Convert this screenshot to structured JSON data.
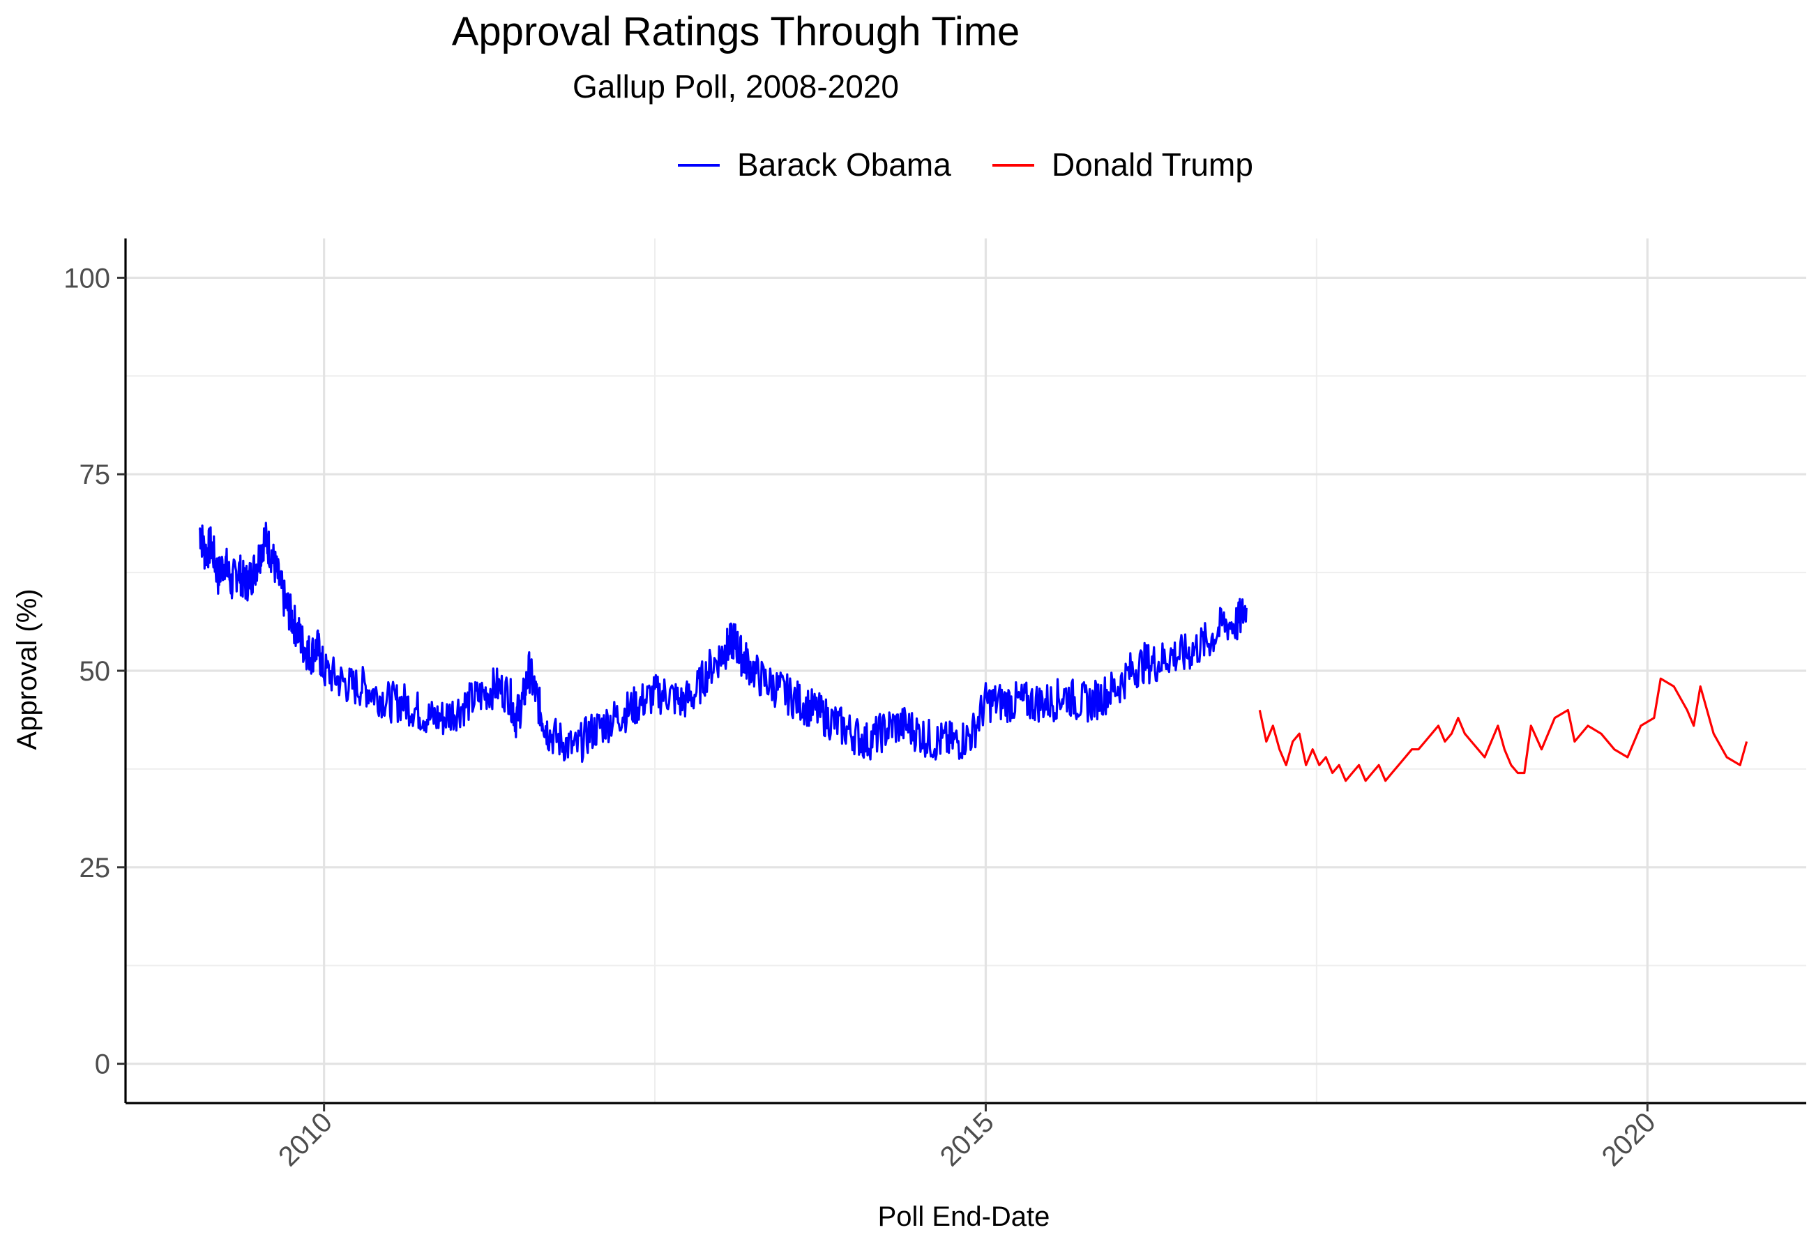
{
  "chart_data": {
    "type": "line",
    "title": "Approval Ratings Through Time",
    "subtitle": "Gallup Poll, 2008-2020",
    "xlabel": "Poll End-Date",
    "ylabel": "Approval (%)",
    "xlim": [
      2008.5,
      2021.2
    ],
    "ylim": [
      -5,
      105
    ],
    "yticks": [
      0,
      25,
      50,
      75,
      100
    ],
    "xticks": [
      2010,
      2015,
      2020
    ],
    "legend_position": "top",
    "grid": true,
    "series": [
      {
        "name": "Barack Obama",
        "color": "#0000ff",
        "points": [
          [
            2009.06,
            68
          ],
          [
            2009.1,
            65
          ],
          [
            2009.15,
            66
          ],
          [
            2009.2,
            62
          ],
          [
            2009.25,
            64
          ],
          [
            2009.3,
            61
          ],
          [
            2009.35,
            63
          ],
          [
            2009.4,
            61
          ],
          [
            2009.45,
            62
          ],
          [
            2009.5,
            64
          ],
          [
            2009.55,
            67
          ],
          [
            2009.6,
            65
          ],
          [
            2009.65,
            62
          ],
          [
            2009.7,
            59
          ],
          [
            2009.75,
            57
          ],
          [
            2009.8,
            55
          ],
          [
            2009.85,
            53
          ],
          [
            2009.9,
            52
          ],
          [
            2009.95,
            53
          ],
          [
            2010.0,
            50
          ],
          [
            2010.1,
            49
          ],
          [
            2010.2,
            48
          ],
          [
            2010.3,
            48
          ],
          [
            2010.4,
            47
          ],
          [
            2010.5,
            46
          ],
          [
            2010.6,
            46
          ],
          [
            2010.7,
            45
          ],
          [
            2010.8,
            44
          ],
          [
            2010.9,
            44
          ],
          [
            2011.0,
            45
          ],
          [
            2011.1,
            46
          ],
          [
            2011.2,
            47
          ],
          [
            2011.3,
            48
          ],
          [
            2011.4,
            47
          ],
          [
            2011.45,
            44
          ],
          [
            2011.5,
            46
          ],
          [
            2011.55,
            50
          ],
          [
            2011.6,
            47
          ],
          [
            2011.65,
            44
          ],
          [
            2011.7,
            42
          ],
          [
            2011.8,
            41
          ],
          [
            2011.9,
            40
          ],
          [
            2012.0,
            42
          ],
          [
            2012.1,
            43
          ],
          [
            2012.2,
            44
          ],
          [
            2012.3,
            45
          ],
          [
            2012.4,
            46
          ],
          [
            2012.5,
            47
          ],
          [
            2012.6,
            47
          ],
          [
            2012.7,
            46
          ],
          [
            2012.8,
            47
          ],
          [
            2012.9,
            50
          ],
          [
            2013.0,
            52
          ],
          [
            2013.05,
            53
          ],
          [
            2013.1,
            54
          ],
          [
            2013.15,
            52
          ],
          [
            2013.2,
            51
          ],
          [
            2013.3,
            49
          ],
          [
            2013.4,
            48
          ],
          [
            2013.5,
            47
          ],
          [
            2013.6,
            46
          ],
          [
            2013.7,
            45
          ],
          [
            2013.8,
            44
          ],
          [
            2013.9,
            43
          ],
          [
            2014.0,
            42
          ],
          [
            2014.1,
            41
          ],
          [
            2014.2,
            42
          ],
          [
            2014.3,
            43
          ],
          [
            2014.4,
            43
          ],
          [
            2014.5,
            42
          ],
          [
            2014.6,
            41
          ],
          [
            2014.7,
            41
          ],
          [
            2014.8,
            41
          ],
          [
            2014.9,
            42
          ],
          [
            2015.0,
            46
          ],
          [
            2015.1,
            46
          ],
          [
            2015.2,
            46
          ],
          [
            2015.3,
            46
          ],
          [
            2015.4,
            46
          ],
          [
            2015.5,
            46
          ],
          [
            2015.6,
            47
          ],
          [
            2015.7,
            46
          ],
          [
            2015.8,
            46
          ],
          [
            2015.9,
            47
          ],
          [
            2016.0,
            48
          ],
          [
            2016.1,
            50
          ],
          [
            2016.2,
            51
          ],
          [
            2016.3,
            51
          ],
          [
            2016.4,
            52
          ],
          [
            2016.5,
            52
          ],
          [
            2016.6,
            53
          ],
          [
            2016.7,
            54
          ],
          [
            2016.8,
            56
          ],
          [
            2016.9,
            56
          ],
          [
            2016.97,
            58
          ]
        ]
      },
      {
        "name": "Donald Trump",
        "color": "#ff0000",
        "points": [
          [
            2017.07,
            45
          ],
          [
            2017.12,
            41
          ],
          [
            2017.17,
            43
          ],
          [
            2017.22,
            40
          ],
          [
            2017.27,
            38
          ],
          [
            2017.32,
            41
          ],
          [
            2017.37,
            42
          ],
          [
            2017.42,
            38
          ],
          [
            2017.47,
            40
          ],
          [
            2017.52,
            38
          ],
          [
            2017.57,
            39
          ],
          [
            2017.62,
            37
          ],
          [
            2017.67,
            38
          ],
          [
            2017.72,
            36
          ],
          [
            2017.77,
            37
          ],
          [
            2017.82,
            38
          ],
          [
            2017.87,
            36
          ],
          [
            2017.92,
            37
          ],
          [
            2017.97,
            38
          ],
          [
            2018.02,
            36
          ],
          [
            2018.07,
            37
          ],
          [
            2018.12,
            38
          ],
          [
            2018.17,
            39
          ],
          [
            2018.22,
            40
          ],
          [
            2018.27,
            40
          ],
          [
            2018.32,
            41
          ],
          [
            2018.37,
            42
          ],
          [
            2018.42,
            43
          ],
          [
            2018.47,
            41
          ],
          [
            2018.52,
            42
          ],
          [
            2018.57,
            44
          ],
          [
            2018.62,
            42
          ],
          [
            2018.67,
            41
          ],
          [
            2018.72,
            40
          ],
          [
            2018.77,
            39
          ],
          [
            2018.82,
            41
          ],
          [
            2018.87,
            43
          ],
          [
            2018.92,
            40
          ],
          [
            2018.97,
            38
          ],
          [
            2019.02,
            37
          ],
          [
            2019.07,
            37
          ],
          [
            2019.12,
            43
          ],
          [
            2019.2,
            40
          ],
          [
            2019.3,
            44
          ],
          [
            2019.4,
            45
          ],
          [
            2019.45,
            41
          ],
          [
            2019.55,
            43
          ],
          [
            2019.65,
            42
          ],
          [
            2019.75,
            40
          ],
          [
            2019.85,
            39
          ],
          [
            2019.95,
            43
          ],
          [
            2020.05,
            44
          ],
          [
            2020.1,
            49
          ],
          [
            2020.2,
            48
          ],
          [
            2020.3,
            45
          ],
          [
            2020.35,
            43
          ],
          [
            2020.4,
            48
          ],
          [
            2020.5,
            42
          ],
          [
            2020.6,
            39
          ],
          [
            2020.7,
            38
          ],
          [
            2020.75,
            41
          ]
        ]
      }
    ]
  }
}
